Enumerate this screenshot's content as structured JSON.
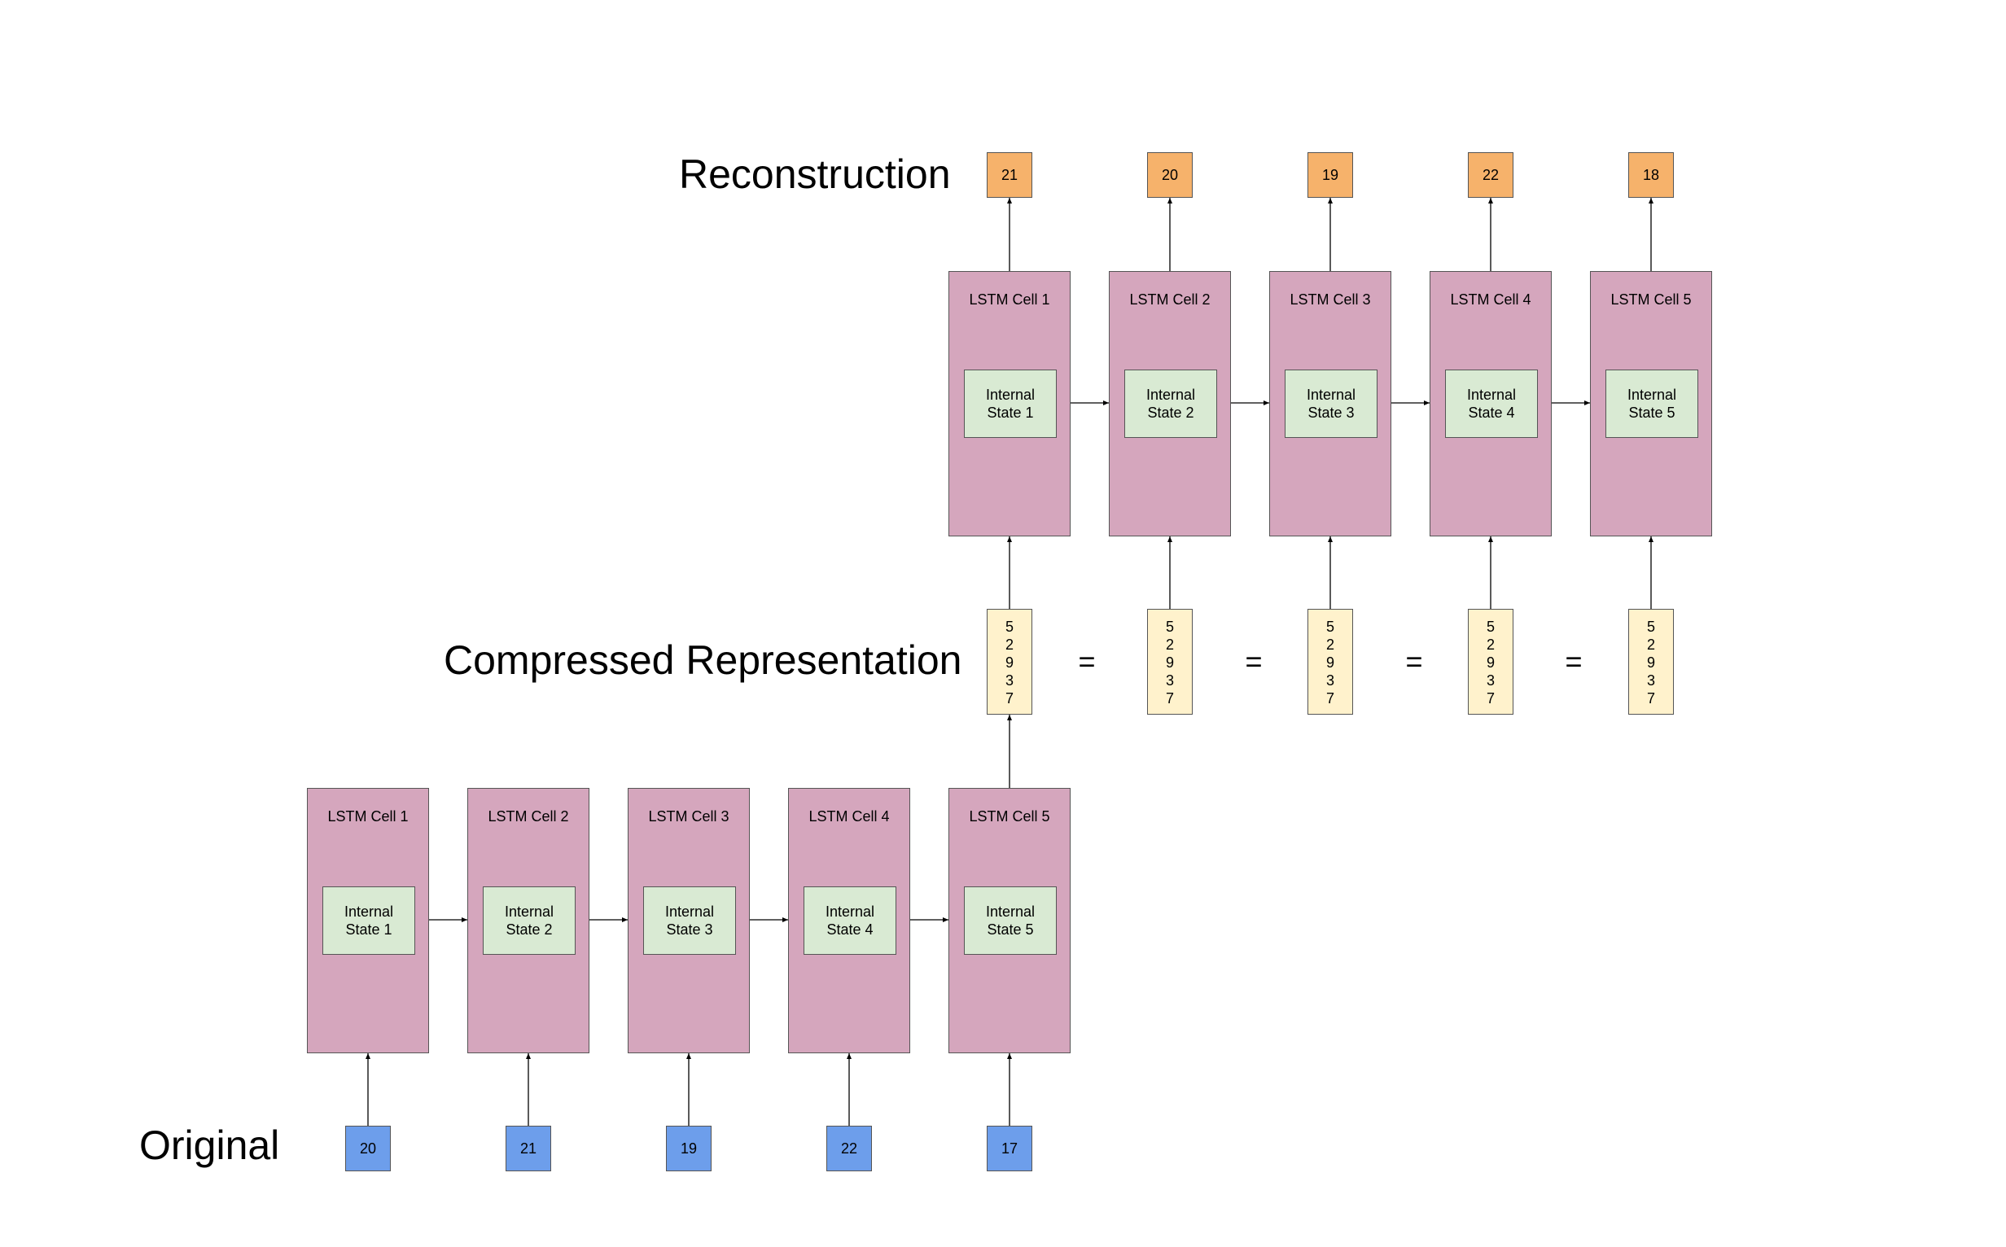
{
  "labels": {
    "original": "Original",
    "compressed": "Compressed Representation",
    "reconstruction": "Reconstruction"
  },
  "encoder": {
    "cells": [
      {
        "title": "LSTM Cell 1",
        "state": "Internal\nState 1"
      },
      {
        "title": "LSTM Cell 2",
        "state": "Internal\nState 2"
      },
      {
        "title": "LSTM Cell 3",
        "state": "Internal\nState 3"
      },
      {
        "title": "LSTM Cell 4",
        "state": "Internal\nState 4"
      },
      {
        "title": "LSTM Cell 5",
        "state": "Internal\nState 5"
      }
    ],
    "inputs": [
      "20",
      "21",
      "19",
      "22",
      "17"
    ]
  },
  "decoder": {
    "cells": [
      {
        "title": "LSTM Cell 1",
        "state": "Internal\nState 1"
      },
      {
        "title": "LSTM Cell 2",
        "state": "Internal\nState 2"
      },
      {
        "title": "LSTM Cell 3",
        "state": "Internal\nState 3"
      },
      {
        "title": "LSTM Cell 4",
        "state": "Internal\nState 4"
      },
      {
        "title": "LSTM Cell 5",
        "state": "Internal\nState 5"
      }
    ],
    "outputs": [
      "21",
      "20",
      "19",
      "22",
      "18"
    ]
  },
  "compressed": {
    "vector": [
      "5",
      "2",
      "9",
      "3",
      "7"
    ],
    "copies": 5,
    "equals": "="
  },
  "colors": {
    "lstm_cell": "#d5a6bd",
    "internal_state": "#d9ead3",
    "original_value": "#6d9eeb",
    "reconstruction_value": "#f6b26b",
    "compressed_vector": "#fff2cc"
  }
}
